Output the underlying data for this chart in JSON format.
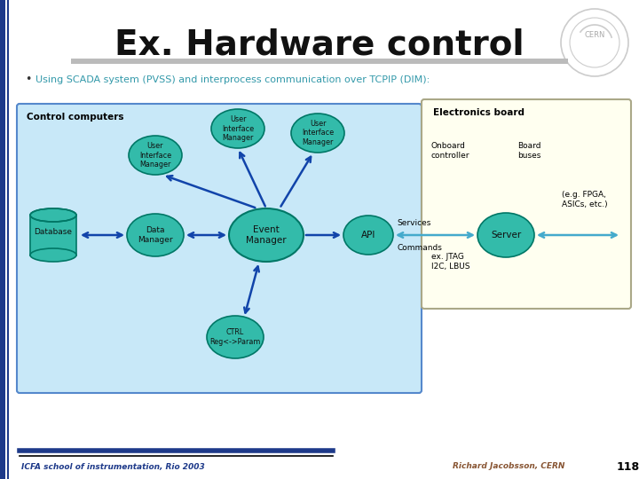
{
  "title": "Ex. Hardware control",
  "bullet": "Using SCADA system (PVSS) and interprocess communication over TCPIP (DIM):",
  "bg_color": "#ffffff",
  "title_color": "#111111",
  "bullet_color": "#3399aa",
  "teal_color": "#33bbaa",
  "teal_edge": "#007766",
  "control_box_color": "#c8e8f8",
  "control_box_edge": "#5588cc",
  "electronics_box_color": "#fffff0",
  "electronics_box_edge": "#aaa888",
  "arrow_color": "#1144aa",
  "arrow_color2": "#44aacc",
  "footer_left": "ICFA school of instrumentation, Rio 2003",
  "footer_right": "Richard Jacobsson, CERN",
  "footer_page": "118",
  "left_bar_color": "#1e3a8a",
  "footer_line1": "#1e3a8a",
  "footer_line2": "#000000"
}
